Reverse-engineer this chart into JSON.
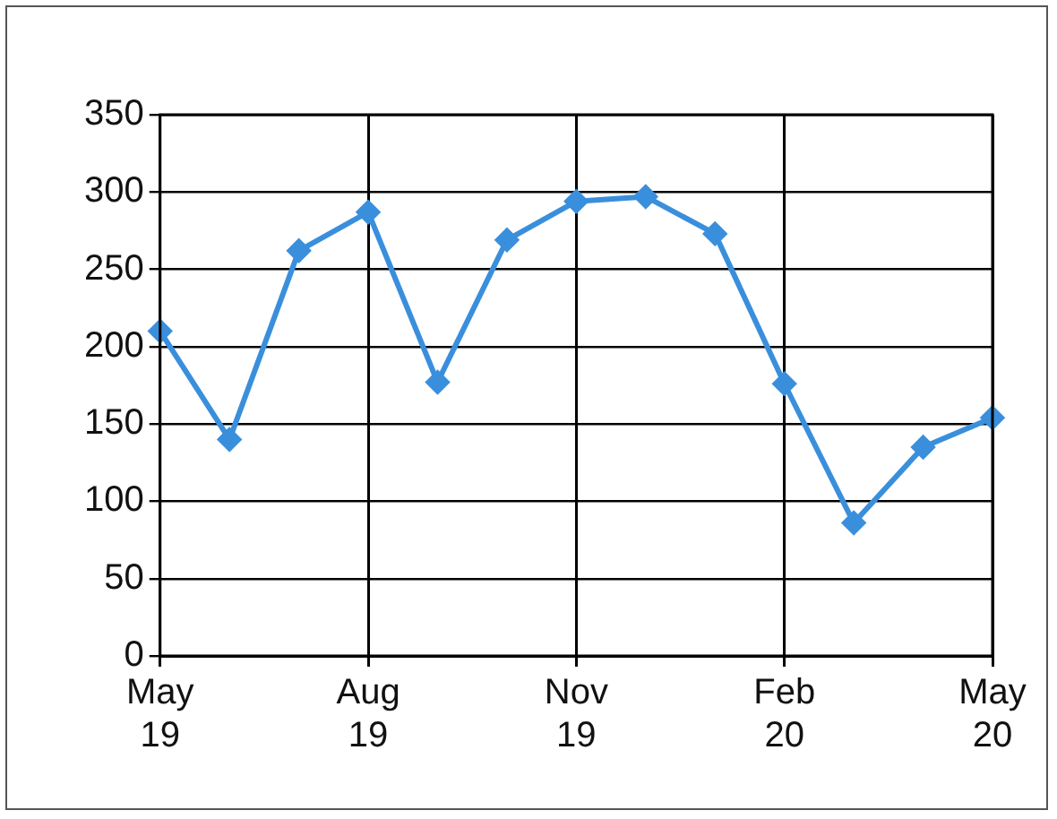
{
  "chart_data": {
    "type": "line",
    "categories": [
      "May 19",
      null,
      null,
      "Aug 19",
      null,
      null,
      "Nov 19",
      null,
      null,
      "Feb 20",
      null,
      null,
      "May 20"
    ],
    "series": [
      {
        "color": "#3a8fdc",
        "values": [
          210,
          140,
          262,
          287,
          177,
          269,
          294,
          297,
          273,
          176,
          86,
          135,
          154
        ]
      }
    ],
    "ylim": [
      0,
      350
    ],
    "yticks": [
      0,
      50,
      100,
      150,
      200,
      250,
      300,
      350
    ],
    "grid": true,
    "legend": false,
    "marker": "diamond",
    "line_style": "solid"
  }
}
